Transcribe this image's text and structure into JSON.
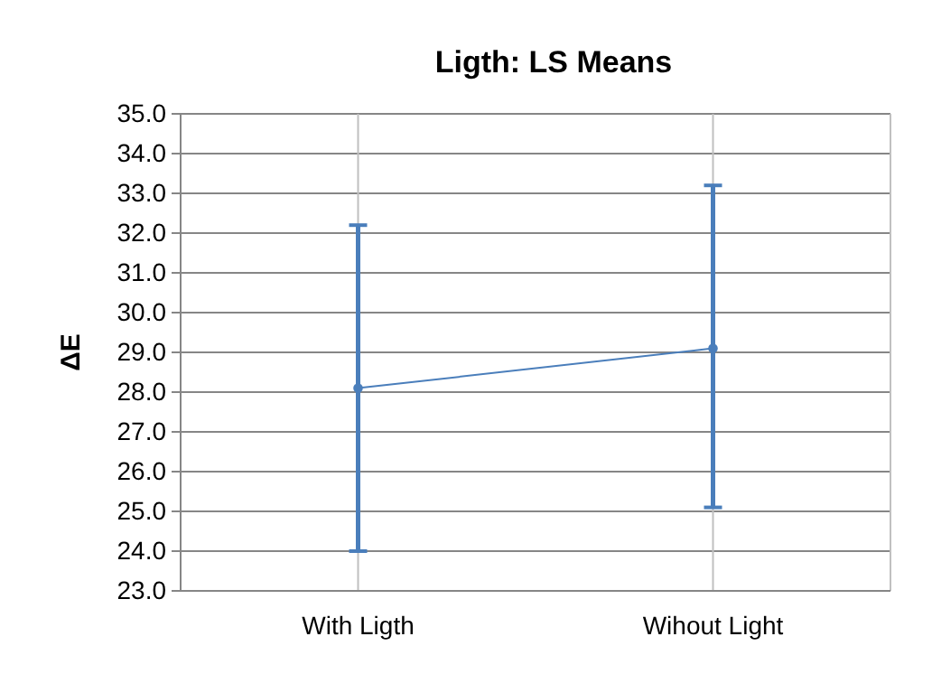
{
  "chart_data": {
    "type": "line",
    "title": "Ligth: LS Means",
    "ylabel": "ΔE",
    "categories": [
      "With Ligth",
      "Wihout Light"
    ],
    "series": [
      {
        "color": "#4a7ebb",
        "values": [
          28.1,
          29.1
        ],
        "errors": [
          [
            24.0,
            32.2
          ],
          [
            25.1,
            33.2
          ]
        ]
      }
    ],
    "ylim": [
      23,
      35
    ],
    "yticks": [
      {
        "value": 23,
        "label": "23.0"
      },
      {
        "value": 24,
        "label": "24.0"
      },
      {
        "value": 25,
        "label": "25.0"
      },
      {
        "value": 26,
        "label": "26.0"
      },
      {
        "value": 27,
        "label": "27.0"
      },
      {
        "value": 28,
        "label": "28.0"
      },
      {
        "value": 29,
        "label": "29.0"
      },
      {
        "value": 30,
        "label": "30.0"
      },
      {
        "value": 31,
        "label": "31.0"
      },
      {
        "value": 32,
        "label": "32.0"
      },
      {
        "value": 33,
        "label": "33.0"
      },
      {
        "value": 34,
        "label": "34.0"
      },
      {
        "value": 35,
        "label": "35.0"
      }
    ],
    "grid": true,
    "marker": "circle",
    "line_style": "solid"
  }
}
